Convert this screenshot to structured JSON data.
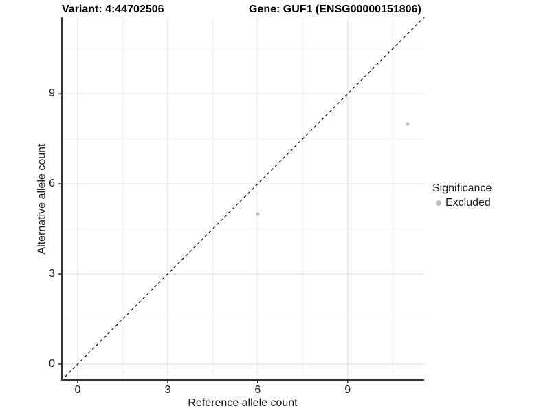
{
  "titles": {
    "variant": "Variant: 4:44702506",
    "gene": "Gene: GUF1 (ENSG00000151806)"
  },
  "axes": {
    "x_label": "Reference allele count",
    "y_label": "Alternative allele count"
  },
  "legend": {
    "title": "Significance",
    "items": [
      {
        "label": "Excluded",
        "color": "#bdbdbd"
      }
    ]
  },
  "colors": {
    "background": "#ffffff",
    "axis_line": "#333333",
    "major_grid": "#e2e2e2",
    "minor_grid": "#f0f0f0",
    "identity_line": "#000000",
    "point": "#bdbdbd",
    "text": "#1a1a1a"
  },
  "chart_data": {
    "type": "scatter",
    "title": "Variant: 4:44702506   Gene: GUF1 (ENSG00000151806)",
    "xlabel": "Reference allele count",
    "ylabel": "Alternative allele count",
    "xlim": [
      -0.55,
      11.55
    ],
    "ylim": [
      -0.55,
      11.55
    ],
    "x_ticks": [
      0,
      3,
      6,
      9
    ],
    "y_ticks": [
      0,
      3,
      6,
      9
    ],
    "x_minor_ticks": [
      1.5,
      4.5,
      7.5,
      10.5
    ],
    "y_minor_ticks": [
      1.5,
      4.5,
      7.5,
      10.5
    ],
    "grid": true,
    "legend_position": "right",
    "identity_line": {
      "style": "dashed",
      "from": [
        -0.55,
        -0.55
      ],
      "to": [
        11.55,
        11.55
      ]
    },
    "series": [
      {
        "name": "Excluded",
        "color": "#bdbdbd",
        "points": [
          {
            "x": 6,
            "y": 5
          },
          {
            "x": 11,
            "y": 8
          }
        ]
      }
    ]
  }
}
